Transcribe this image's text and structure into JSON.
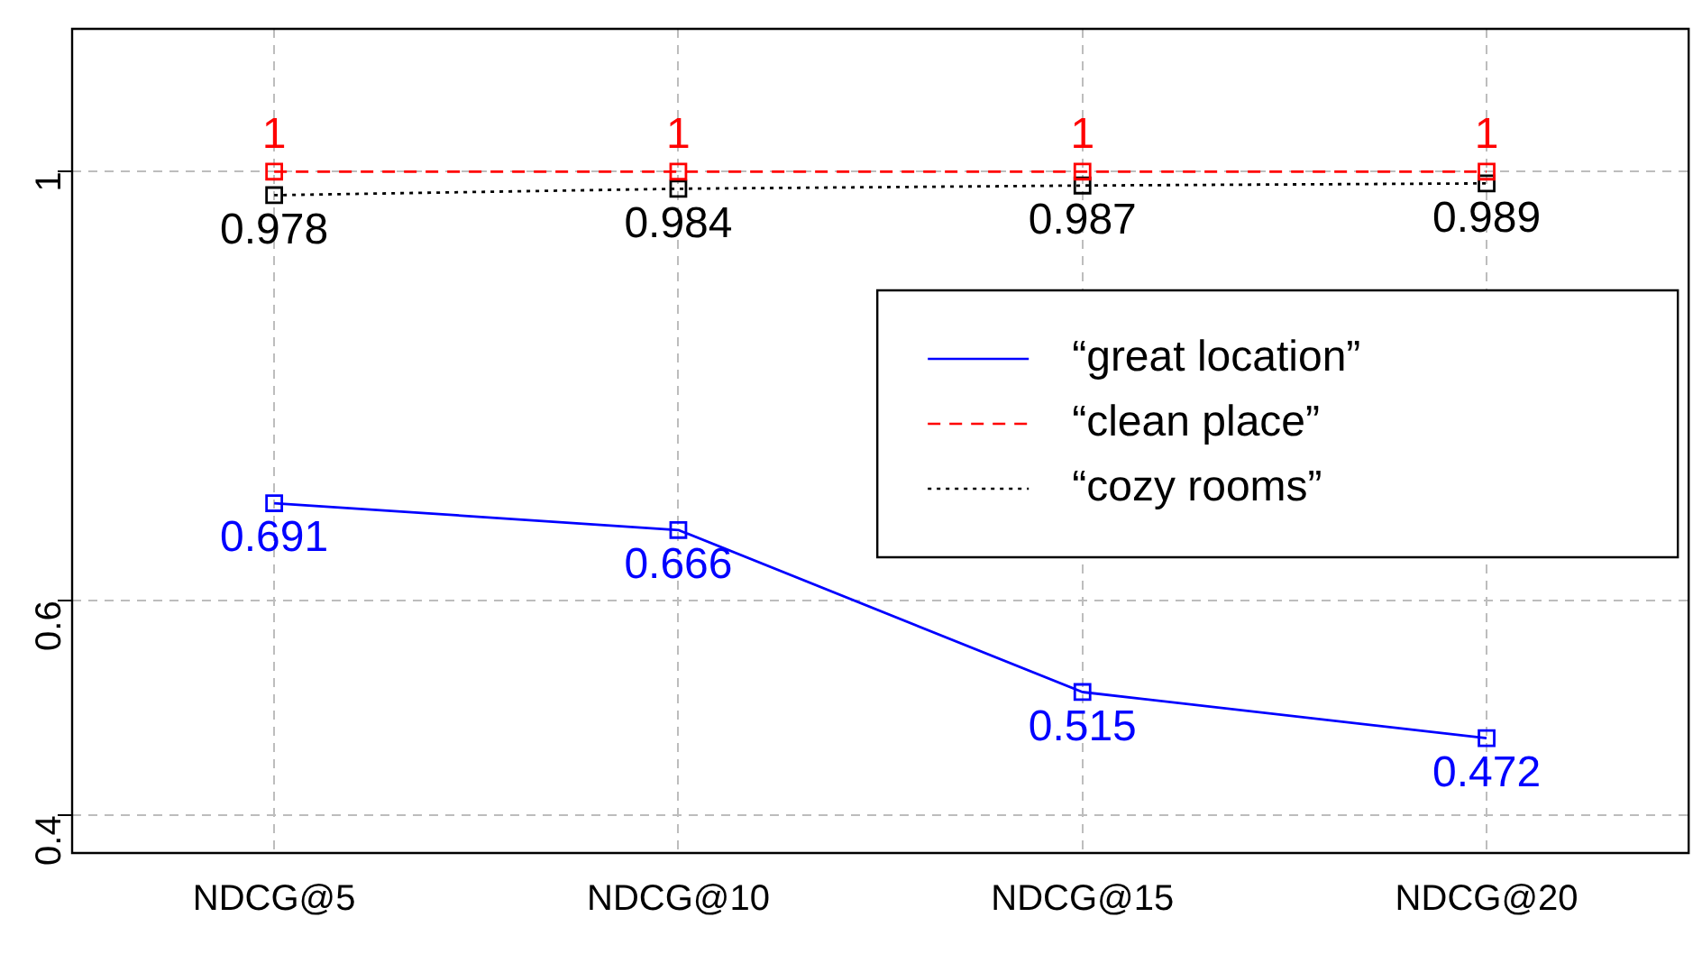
{
  "chart_data": {
    "type": "line",
    "categories": [
      "NDCG@5",
      "NDCG@10",
      "NDCG@15",
      "NDCG@20"
    ],
    "series": [
      {
        "name": "“great location”",
        "color": "#0000ff",
        "values": [
          0.691,
          0.666,
          0.515,
          0.472
        ],
        "line_style": "solid"
      },
      {
        "name": "“clean place”",
        "color": "#ff0000",
        "values": [
          1,
          1,
          1,
          1
        ],
        "line_style": "dashed"
      },
      {
        "name": "“cozy rooms”",
        "color": "#000000",
        "values": [
          0.978,
          0.984,
          0.987,
          0.989
        ],
        "line_style": "dotted"
      }
    ],
    "ylim": [
      0.365,
      1.133
    ],
    "yticks": [
      0.4,
      0.6,
      1
    ],
    "grid": true,
    "legend": "right",
    "marker": "square",
    "data_labels": true
  }
}
